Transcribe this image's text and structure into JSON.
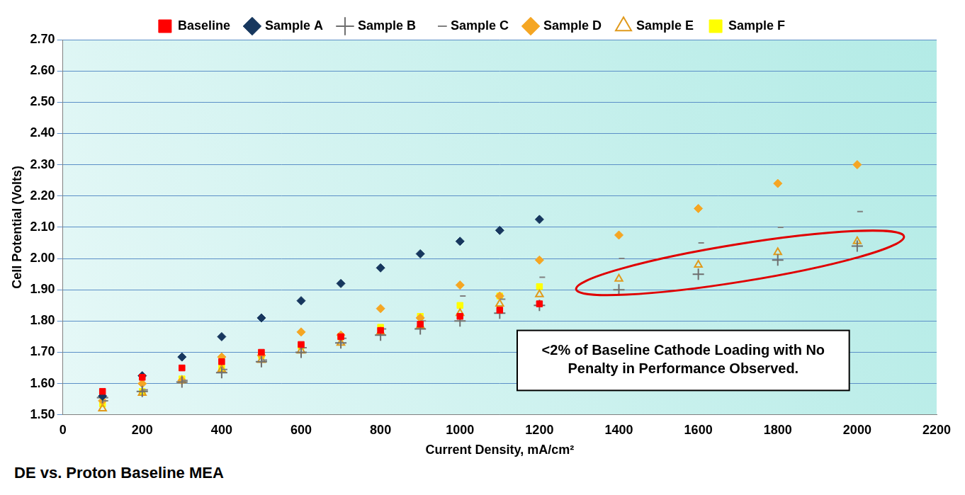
{
  "chart_data": {
    "type": "scatter",
    "x_label": "Current Density, mA/cm²",
    "y_label": "Cell Potential (Volts)",
    "caption": "DE vs. Proton Baseline MEA",
    "annotation": "<2% of Baseline Cathode Loading with No Penalty in Performance Observed.",
    "x": [
      100,
      200,
      300,
      400,
      500,
      600,
      700,
      800,
      900,
      1000,
      1100,
      1200,
      1400,
      1600,
      1800,
      2000
    ],
    "series": [
      {
        "name": "Baseline",
        "color": "#ff0000",
        "marker": "square",
        "values": [
          1.575,
          1.62,
          1.65,
          1.67,
          1.7,
          1.725,
          1.75,
          1.77,
          1.79,
          1.815,
          1.835,
          1.855,
          null,
          null,
          null,
          null
        ]
      },
      {
        "name": "Sample A",
        "color": "#17375e",
        "marker": "diamond",
        "values": [
          1.56,
          1.625,
          1.685,
          1.75,
          1.81,
          1.865,
          1.92,
          1.97,
          2.015,
          2.055,
          2.09,
          2.125,
          null,
          null,
          null,
          null
        ]
      },
      {
        "name": "Sample B",
        "color": "#6e6e6e",
        "marker": "plus",
        "values": [
          1.555,
          1.575,
          1.605,
          1.635,
          1.67,
          1.7,
          1.73,
          1.755,
          1.775,
          1.8,
          1.825,
          1.85,
          1.9,
          1.95,
          1.995,
          2.04
        ]
      },
      {
        "name": "Sample C",
        "color": "#808080",
        "marker": "dash",
        "values": [
          1.545,
          1.58,
          1.61,
          1.645,
          1.675,
          1.715,
          1.745,
          1.775,
          1.8,
          1.88,
          1.87,
          1.94,
          2.0,
          2.05,
          2.1,
          2.15
        ]
      },
      {
        "name": "Sample D",
        "color": "#f5a623",
        "marker": "diamond",
        "values": [
          1.545,
          1.6,
          1.61,
          1.685,
          1.69,
          1.765,
          1.755,
          1.84,
          1.81,
          1.915,
          1.88,
          1.995,
          2.075,
          2.16,
          2.24,
          2.3
        ]
      },
      {
        "name": "Sample E",
        "color": "#e09a1c",
        "marker": "open_triangle",
        "values": [
          1.52,
          1.57,
          1.61,
          1.645,
          1.675,
          1.705,
          1.73,
          1.765,
          1.785,
          1.825,
          1.855,
          1.885,
          1.935,
          1.98,
          2.02,
          2.055
        ]
      },
      {
        "name": "Sample F",
        "color": "#ffff00",
        "marker": "square",
        "values": [
          1.535,
          1.575,
          1.615,
          1.65,
          1.69,
          1.72,
          1.75,
          1.78,
          1.815,
          1.85,
          1.88,
          1.91,
          null,
          null,
          null,
          null
        ]
      }
    ],
    "xlim": [
      0,
      2200
    ],
    "xticks": [
      0,
      200,
      400,
      600,
      800,
      1000,
      1200,
      1400,
      1600,
      1800,
      2000,
      2200
    ],
    "ylim": [
      1.5,
      2.7
    ],
    "yticks": [
      {
        "value": 1.5,
        "label": "1.50"
      },
      {
        "value": 1.6,
        "label": "1.60"
      },
      {
        "value": 1.7,
        "label": "1.70"
      },
      {
        "value": 1.8,
        "label": "1.80"
      },
      {
        "value": 1.9,
        "label": "1.90"
      },
      {
        "value": 2.0,
        "label": "2.00"
      },
      {
        "value": 2.1,
        "label": "2.10"
      },
      {
        "value": 2.2,
        "label": "2.20"
      },
      {
        "value": 2.3,
        "label": "2.30"
      },
      {
        "value": 2.4,
        "label": "2.40"
      },
      {
        "value": 2.5,
        "label": "2.50"
      },
      {
        "value": 2.6,
        "label": "2.60"
      },
      {
        "value": 2.7,
        "label": "2.70"
      }
    ],
    "grid": "y",
    "legend": "top"
  }
}
